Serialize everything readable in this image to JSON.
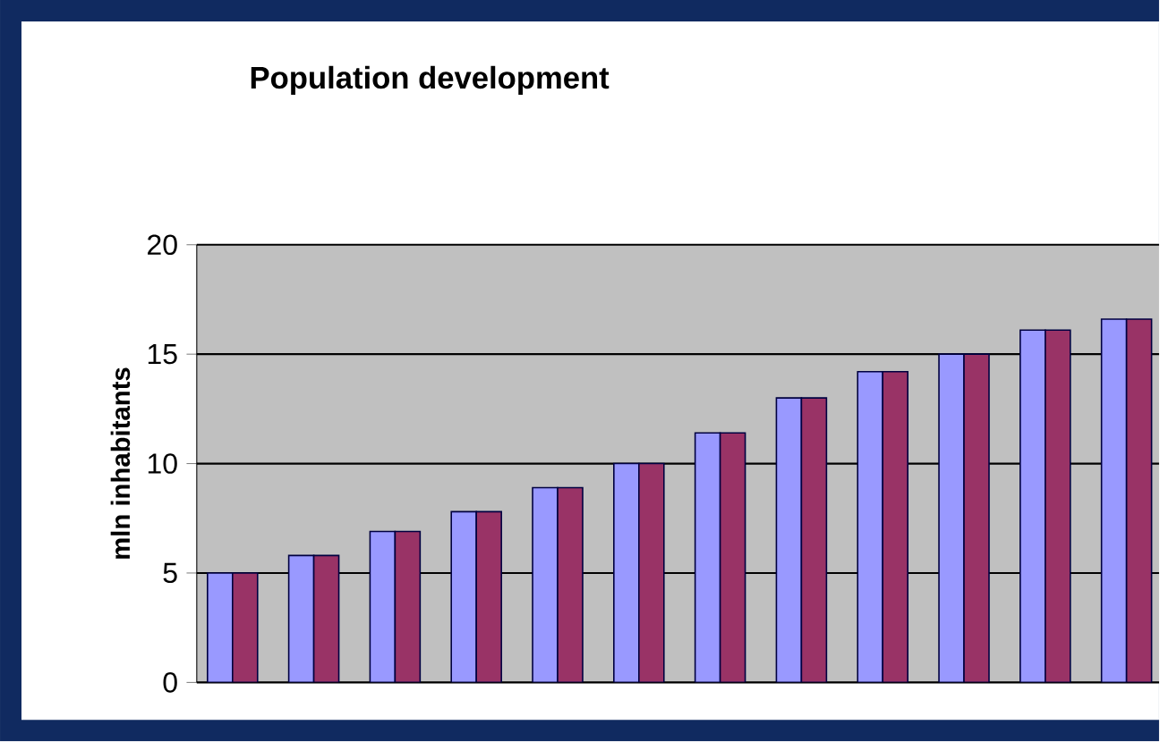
{
  "chart_data": {
    "type": "bar",
    "title": "Population development",
    "ylabel": "mln inhabitants",
    "categories": [
      null,
      null,
      null,
      null,
      null,
      null,
      null,
      null,
      null,
      null,
      null,
      null
    ],
    "series": [
      {
        "color": "#9999ff",
        "values": [
          5.0,
          5.8,
          6.9,
          7.8,
          8.9,
          10.0,
          11.4,
          13.0,
          14.2,
          15.0,
          16.1,
          16.6
        ]
      },
      {
        "color": "#993366",
        "values": [
          5.0,
          5.8,
          6.9,
          7.8,
          8.9,
          10.0,
          11.4,
          13.0,
          14.2,
          15.0,
          16.1,
          16.6
        ]
      }
    ],
    "ylim": [
      0,
      20
    ],
    "yticks": [
      0,
      5,
      10,
      15,
      20
    ],
    "grid": "y",
    "legend": false,
    "tick_labels": "y"
  }
}
